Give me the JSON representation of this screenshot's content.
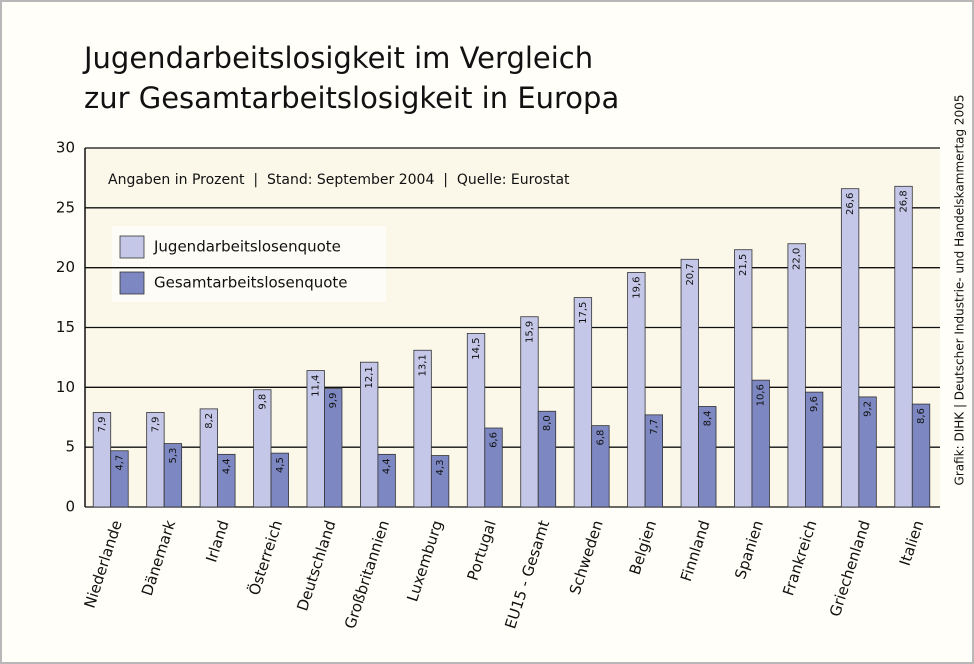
{
  "chart_data": {
    "type": "bar",
    "title": [
      "Jugendarbeitslosigkeit im Vergleich",
      "zur Gesamtarbeitslosigkeit in Europa"
    ],
    "annotation": "Angaben in Prozent  |  Stand: September 2004  |  Quelle: Eurostat",
    "source": "Grafik: DIHK | Deutscher Industrie- und Handelskammertag 2005",
    "categories": [
      "Niederlande",
      "Dänemark",
      "Irland",
      "Österreich",
      "Deutschland",
      "Großbritannien",
      "Luxemburg",
      "Portugal",
      "EU15 - Gesamt",
      "Schweden",
      "Belgien",
      "Finnland",
      "Spanien",
      "Frankreich",
      "Griechenland",
      "Italien"
    ],
    "highlight_category": 4,
    "highlight_color": "#2a6db5",
    "series": [
      {
        "name": "Jugendarbeitslosenquote",
        "color": "#c4c7e8",
        "values": [
          7.9,
          7.9,
          8.2,
          9.8,
          11.4,
          12.1,
          13.1,
          14.5,
          15.9,
          17.5,
          19.6,
          20.7,
          21.5,
          22.0,
          26.6,
          26.8
        ],
        "value_labels": [
          "7,9",
          "7,9",
          "8,2",
          "9,8",
          "11,4",
          "12,1",
          "13,1",
          "14,5",
          "15,9",
          "17,5",
          "19,6",
          "20,7",
          "21,5",
          "22,0",
          "26,6",
          "26,8"
        ]
      },
      {
        "name": "Gesamtarbeitslosenquote",
        "color": "#7d88c2",
        "values": [
          4.7,
          5.3,
          4.4,
          4.5,
          9.9,
          4.4,
          4.3,
          6.6,
          8.0,
          6.8,
          7.7,
          8.4,
          10.6,
          9.6,
          9.2,
          8.6
        ],
        "value_labels": [
          "4,7",
          "5,3",
          "4,4",
          "4,5",
          "9,9",
          "4,4",
          "4,3",
          "6,6",
          "8,0",
          "6,8",
          "7,7",
          "8,4",
          "10,6",
          "9,6",
          "9,2",
          "8,6"
        ]
      }
    ],
    "ylim": [
      0,
      30
    ],
    "yticks": [
      0,
      5,
      10,
      15,
      20,
      25,
      30
    ],
    "grid": true
  }
}
